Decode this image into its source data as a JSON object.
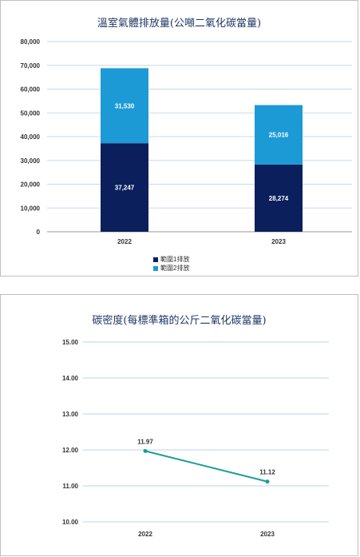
{
  "chart_data": [
    {
      "type": "bar",
      "stacked": true,
      "title": "溫室氣體排放量(公噸二氧化碳當量)",
      "categories": [
        "2022",
        "2023"
      ],
      "series": [
        {
          "name": "範圍1排放",
          "values": [
            37247,
            28274
          ],
          "labels": [
            "37,247",
            "28,274"
          ],
          "color": "#0b1f5c"
        },
        {
          "name": "範圍2排放",
          "values": [
            31530,
            25016
          ],
          "labels": [
            "31,530",
            "25,016"
          ],
          "color": "#1c9ad6"
        }
      ],
      "ylim": [
        0,
        80000
      ],
      "yticks": [
        "0",
        "10,000",
        "20,000",
        "30,000",
        "40,000",
        "50,000",
        "60,000",
        "70,000",
        "80,000"
      ],
      "grid": true,
      "legend_position": "bottom"
    },
    {
      "type": "line",
      "title": "碳密度(每標準箱的公斤二氧化碳當量)",
      "categories": [
        "2022",
        "2023"
      ],
      "series": [
        {
          "values": [
            11.97,
            11.12
          ],
          "labels": [
            "11.97",
            "11.12"
          ],
          "color": "#1a9e96"
        }
      ],
      "ylim": [
        10,
        15
      ],
      "yticks": [
        "10.00",
        "11.00",
        "12.00",
        "13.00",
        "14.00",
        "15.00"
      ],
      "grid": true
    }
  ]
}
